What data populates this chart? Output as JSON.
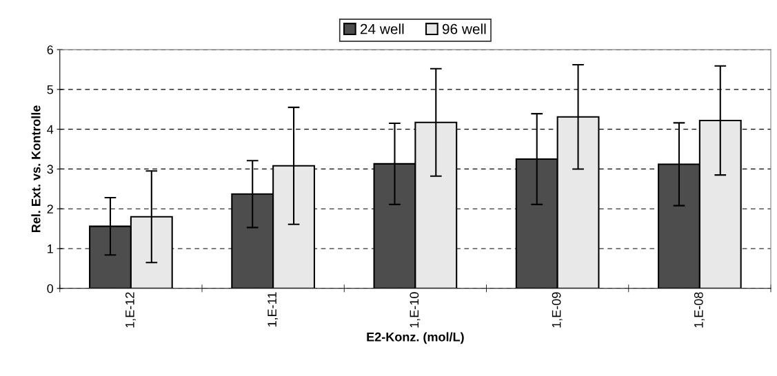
{
  "chart_data": {
    "type": "bar",
    "xlabel": "E2-Konz. (mol/L)",
    "ylabel": "Rel. Ext. vs. Kontrolle",
    "categories": [
      "1,E-12",
      "1,E-11",
      "1,E-10",
      "1,E-09",
      "1,E-08"
    ],
    "series": [
      {
        "name": "24 well",
        "color": "#4d4d4d",
        "values": [
          1.56,
          2.37,
          3.13,
          3.25,
          3.12
        ],
        "errors": [
          0.72,
          0.84,
          1.02,
          1.14,
          1.04
        ]
      },
      {
        "name": "96 well",
        "color": "#e8e8e8",
        "values": [
          1.8,
          3.08,
          4.17,
          4.31,
          4.22
        ],
        "errors": [
          1.15,
          1.47,
          1.35,
          1.31,
          1.37
        ]
      }
    ],
    "ylim": [
      0,
      6
    ],
    "yticks": [
      0,
      1,
      2,
      3,
      4,
      5,
      6
    ],
    "grid": "y",
    "legend": "top"
  }
}
